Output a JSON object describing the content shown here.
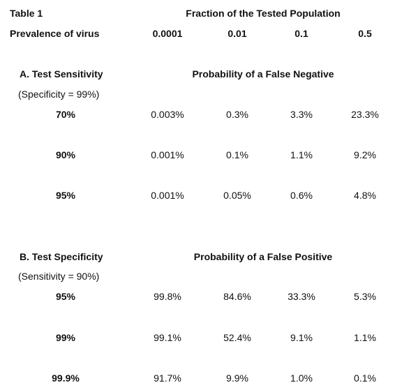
{
  "header": {
    "table_label": "Table 1",
    "fraction_title": "Fraction of the Tested Population",
    "prevalence_label": "Prevalence of virus",
    "prevalence_values": [
      "0.0001",
      "0.01",
      "0.1",
      "0.5"
    ]
  },
  "section_a": {
    "title": "A. Test Sensitivity",
    "subtitle": "(Specificity = 99%)",
    "heading": "Probability of a False Negative",
    "rows": [
      {
        "label": "70%",
        "values": [
          "0.003%",
          "0.3%",
          "3.3%",
          "23.3%"
        ]
      },
      {
        "label": "90%",
        "values": [
          "0.001%",
          "0.1%",
          "1.1%",
          "9.2%"
        ]
      },
      {
        "label": "95%",
        "values": [
          "0.001%",
          "0.05%",
          "0.6%",
          "4.8%"
        ]
      }
    ]
  },
  "section_b": {
    "title": "B. Test Specificity",
    "subtitle": "(Sensitivity = 90%)",
    "heading": "Probability of a False Positive",
    "rows": [
      {
        "label": "95%",
        "values": [
          "99.8%",
          "84.6%",
          "33.3%",
          "5.3%"
        ]
      },
      {
        "label": "99%",
        "values": [
          "99.1%",
          "52.4%",
          "9.1%",
          "1.1%"
        ]
      },
      {
        "label": "99.9%",
        "values": [
          "91.7%",
          "9.9%",
          "1.0%",
          "0.1%"
        ]
      }
    ]
  }
}
